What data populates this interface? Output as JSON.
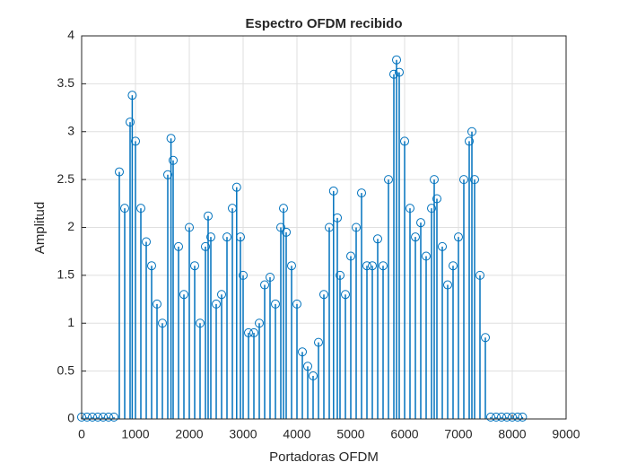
{
  "chart_data": {
    "type": "stem",
    "title": "Espectro OFDM recibido",
    "xlabel": "Portadoras OFDM",
    "ylabel": "Amplitud",
    "color": "#0072bd",
    "grid": true,
    "xlim": [
      0,
      9000
    ],
    "xticks": [
      0,
      1000,
      2000,
      3000,
      4000,
      5000,
      6000,
      7000,
      8000,
      9000
    ],
    "ylim": [
      0,
      4
    ],
    "yticks": [
      0,
      0.5,
      1,
      1.5,
      2,
      2.5,
      3,
      3.5,
      4
    ],
    "x": [
      0,
      100,
      200,
      300,
      400,
      500,
      600,
      700,
      800,
      900,
      940,
      1000,
      1100,
      1200,
      1300,
      1400,
      1500,
      1600,
      1660,
      1700,
      1800,
      1900,
      2000,
      2100,
      2200,
      2300,
      2350,
      2400,
      2500,
      2600,
      2700,
      2800,
      2880,
      2950,
      3000,
      3100,
      3200,
      3300,
      3400,
      3500,
      3600,
      3700,
      3750,
      3800,
      3900,
      4000,
      4100,
      4200,
      4300,
      4400,
      4500,
      4600,
      4680,
      4750,
      4800,
      4900,
      5000,
      5100,
      5200,
      5300,
      5400,
      5500,
      5600,
      5700,
      5800,
      5850,
      5900,
      6000,
      6100,
      6200,
      6300,
      6400,
      6500,
      6550,
      6600,
      6700,
      6800,
      6900,
      7000,
      7100,
      7200,
      7250,
      7300,
      7400,
      7500,
      7600,
      7700,
      7800,
      7900,
      8000,
      8100,
      8190
    ],
    "values": [
      0.02,
      0.02,
      0.02,
      0.02,
      0.02,
      0.02,
      0.02,
      2.58,
      2.2,
      3.1,
      3.38,
      2.9,
      2.2,
      1.85,
      1.6,
      1.2,
      1.0,
      2.55,
      2.93,
      2.7,
      1.8,
      1.3,
      2.0,
      1.6,
      1.0,
      1.8,
      2.12,
      1.9,
      1.2,
      1.3,
      1.9,
      2.2,
      2.42,
      1.9,
      1.5,
      0.9,
      0.9,
      1.0,
      1.4,
      1.48,
      1.2,
      2.0,
      2.2,
      1.95,
      1.6,
      1.2,
      0.7,
      0.55,
      0.45,
      0.8,
      1.3,
      2.0,
      2.38,
      2.1,
      1.5,
      1.3,
      1.7,
      2.0,
      2.36,
      1.6,
      1.6,
      1.88,
      1.6,
      2.5,
      3.6,
      3.75,
      3.62,
      2.9,
      2.2,
      1.9,
      2.05,
      1.7,
      2.2,
      2.5,
      2.3,
      1.8,
      1.4,
      1.6,
      1.9,
      2.5,
      2.9,
      3.0,
      2.5,
      1.5,
      0.85,
      0.02,
      0.02,
      0.02,
      0.02,
      0.02,
      0.02,
      0.02
    ]
  }
}
